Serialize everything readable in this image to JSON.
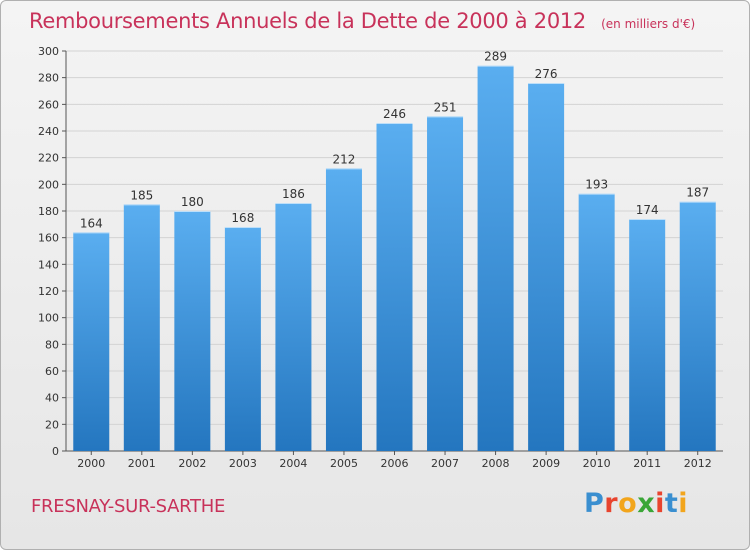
{
  "page": {
    "title": "Remboursements Annuels de la Dette de 2000 à 2012",
    "subtitle": "(en milliers d'€)",
    "city": "FRESNAY-SUR-SARTHE",
    "logo_letters": [
      "P",
      "r",
      "o",
      "x",
      "i",
      "t",
      "i"
    ],
    "logo_colors": [
      "#3a8fd0",
      "#e8442e",
      "#f2a51c",
      "#3aa637",
      "#e8442e",
      "#3a8fd0",
      "#f2a51c"
    ]
  },
  "chart_data": {
    "type": "bar",
    "title": "Remboursements Annuels de la Dette de 2000 à 2012",
    "subtitle": "(en milliers d'€)",
    "categories": [
      "2000",
      "2001",
      "2002",
      "2003",
      "2004",
      "2005",
      "2006",
      "2007",
      "2008",
      "2009",
      "2010",
      "2011",
      "2012"
    ],
    "values": [
      164,
      185,
      180,
      168,
      186,
      212,
      246,
      251,
      289,
      276,
      193,
      174,
      187
    ],
    "ylim": [
      0,
      300
    ],
    "yticks": [
      0,
      20,
      40,
      60,
      80,
      100,
      120,
      140,
      160,
      180,
      200,
      220,
      240,
      260,
      280,
      300
    ],
    "grid": true,
    "bar_color_top": "#5aaef0",
    "bar_color_bottom": "#2476bf",
    "title_color": "#c8325a"
  }
}
